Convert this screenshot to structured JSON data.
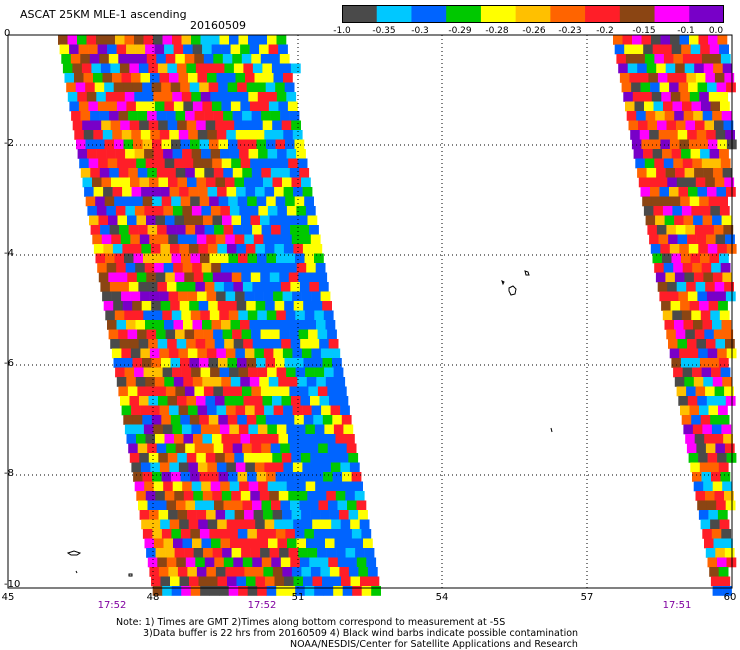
{
  "header": {
    "title": "ASCAT 25KM MLE-1 ascending",
    "date": "20160509"
  },
  "colorbar": {
    "labels": [
      "-1.0",
      "-0.35",
      "-0.3",
      "-0.29",
      "-0.28",
      "-0.26",
      "-0.23",
      "-0.2",
      "-0.15",
      "-0.1",
      "0.0"
    ],
    "colors": [
      "#4a4a4a",
      "#00c8ff",
      "#0064ff",
      "#00c800",
      "#ffff00",
      "#ffc000",
      "#ff6400",
      "#ff1e28",
      "#8b4513",
      "#ff00ff",
      "#7800c8"
    ]
  },
  "axes": {
    "lat_ticks": [
      "0",
      "-2",
      "-4",
      "-6",
      "-8",
      "-10"
    ],
    "lon_ticks": [
      "45",
      "48",
      "51",
      "54",
      "57",
      "60"
    ]
  },
  "swath_times": [
    "17:52",
    "17:52",
    "17:51"
  ],
  "notes": {
    "line1": "Note: 1) Times are GMT 2)Times along bottom correspond to measurement at -5S",
    "line2": "3)Data buffer is 22 hrs from 20160509 4) Black wind barbs indicate possible contamination",
    "line3": "NOAA/NESDIS/Center for Satellite Applications and Research"
  }
}
